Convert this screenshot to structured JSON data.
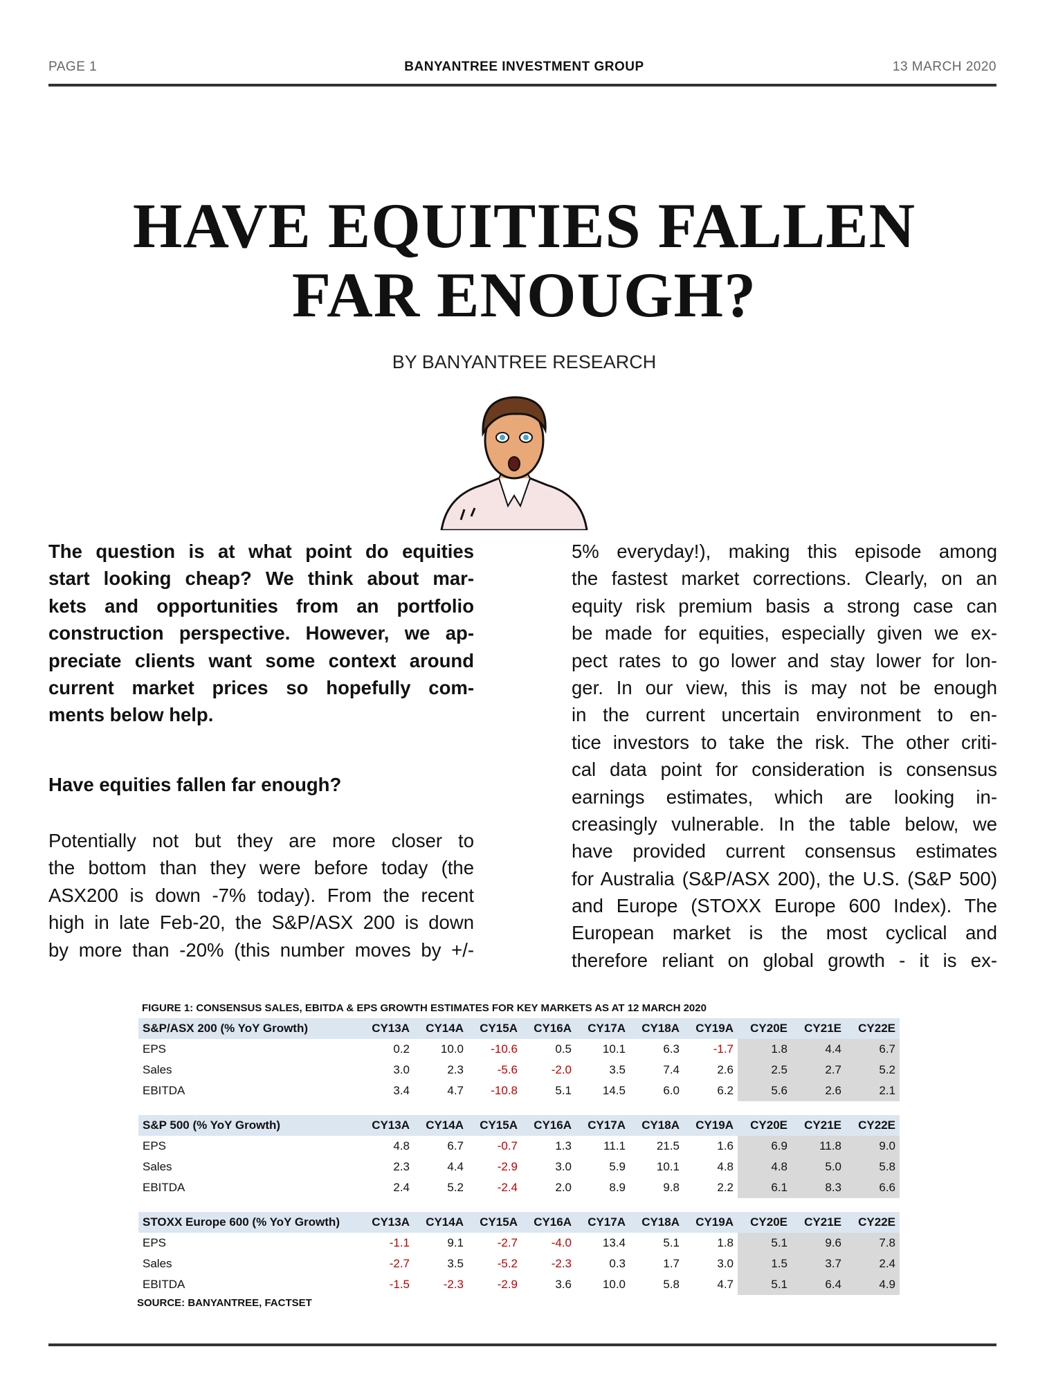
{
  "header": {
    "page": "PAGE 1",
    "org": "BANYANTREE INVESTMENT GROUP",
    "date": "13 MARCH 2020"
  },
  "title": {
    "line1": "HAVE EQUITIES FALLEN",
    "line2": "FAR ENOUGH?"
  },
  "byline": "BY BANYANTREE RESEARCH",
  "intro_lines": [
    "The question is at what point do equities",
    "start looking cheap? We think about mar-",
    "kets and opportunities from an portfolio",
    "construction perspective. However, we ap-",
    "preciate clients want some context around",
    "current market prices so hopefully com-",
    "ments below help."
  ],
  "section_heading": "Have equities fallen far enough?",
  "left_body_lines": [
    "Potentially not but they are more closer to",
    "the bottom than they were before today (the",
    "ASX200 is down -7% today). From the recent",
    "high in late Feb-20, the S&P/ASX 200 is down",
    "by more than -20% (this number moves by +/-"
  ],
  "right_body_lines": [
    "5% everyday!), making this episode among",
    "the fastest market corrections. Clearly, on an",
    "equity risk premium basis a strong case can",
    "be made for equities, especially given we ex-",
    "pect rates to go lower and stay lower for lon-",
    "ger. In our view, this is may not be enough",
    "in the current uncertain environment to en-",
    "tice investors to take the risk. The other criti-",
    "cal data point for consideration is consensus",
    "earnings estimates, which are looking in-",
    "creasingly vulnerable. In the table below, we",
    "have provided current consensus estimates",
    "for Australia (S&P/ASX 200), the U.S. (S&P 500)",
    "and Europe (STOXX Europe 600 Index). The",
    "European market is the most cyclical and",
    "therefore reliant on global growth - it is ex-"
  ],
  "figure": {
    "caption": "FIGURE 1: CONSENSUS SALES, EBITDA & EPS GROWTH ESTIMATES FOR KEY MARKETS AS AT 12 MARCH 2020",
    "columns": [
      "CY13A",
      "CY14A",
      "CY15A",
      "CY16A",
      "CY17A",
      "CY18A",
      "CY19A",
      "CY20E",
      "CY21E",
      "CY22E"
    ],
    "negative_color": "#c00000",
    "header_color": "#dce6f1",
    "estimate_shade_color": "#d9d9d9",
    "blocks": [
      {
        "title": "S&P/ASX 200 (% YoY Growth)",
        "rows": [
          {
            "label": "EPS",
            "values": [
              "0.2",
              "10.0",
              "-10.6",
              "0.5",
              "10.1",
              "6.3",
              "-1.7",
              "1.8",
              "4.4",
              "6.7"
            ]
          },
          {
            "label": "Sales",
            "values": [
              "3.0",
              "2.3",
              "-5.6",
              "-2.0",
              "3.5",
              "7.4",
              "2.6",
              "2.5",
              "2.7",
              "5.2"
            ]
          },
          {
            "label": "EBITDA",
            "values": [
              "3.4",
              "4.7",
              "-10.8",
              "5.1",
              "14.5",
              "6.0",
              "6.2",
              "5.6",
              "2.6",
              "2.1"
            ]
          }
        ]
      },
      {
        "title": "S&P 500 (% YoY Growth)",
        "rows": [
          {
            "label": "EPS",
            "values": [
              "4.8",
              "6.7",
              "-0.7",
              "1.3",
              "11.1",
              "21.5",
              "1.6",
              "6.9",
              "11.8",
              "9.0"
            ]
          },
          {
            "label": "Sales",
            "values": [
              "2.3",
              "4.4",
              "-2.9",
              "3.0",
              "5.9",
              "10.1",
              "4.8",
              "4.8",
              "5.0",
              "5.8"
            ]
          },
          {
            "label": "EBITDA",
            "values": [
              "2.4",
              "5.2",
              "-2.4",
              "2.0",
              "8.9",
              "9.8",
              "2.2",
              "6.1",
              "8.3",
              "6.6"
            ]
          }
        ]
      },
      {
        "title": "STOXX Europe 600 (% YoY Growth)",
        "rows": [
          {
            "label": "EPS",
            "values": [
              "-1.1",
              "9.1",
              "-2.7",
              "-4.0",
              "13.4",
              "5.1",
              "1.8",
              "5.1",
              "9.6",
              "7.8"
            ]
          },
          {
            "label": "Sales",
            "values": [
              "-2.7",
              "3.5",
              "-5.2",
              "-2.3",
              "0.3",
              "1.7",
              "3.0",
              "1.5",
              "3.7",
              "2.4"
            ]
          },
          {
            "label": "EBITDA",
            "values": [
              "-1.5",
              "-2.3",
              "-2.9",
              "3.6",
              "10.0",
              "5.8",
              "4.7",
              "5.1",
              "6.4",
              "4.9"
            ]
          }
        ]
      }
    ],
    "source": "SOURCE: BANYANTREE, FACTSET"
  }
}
